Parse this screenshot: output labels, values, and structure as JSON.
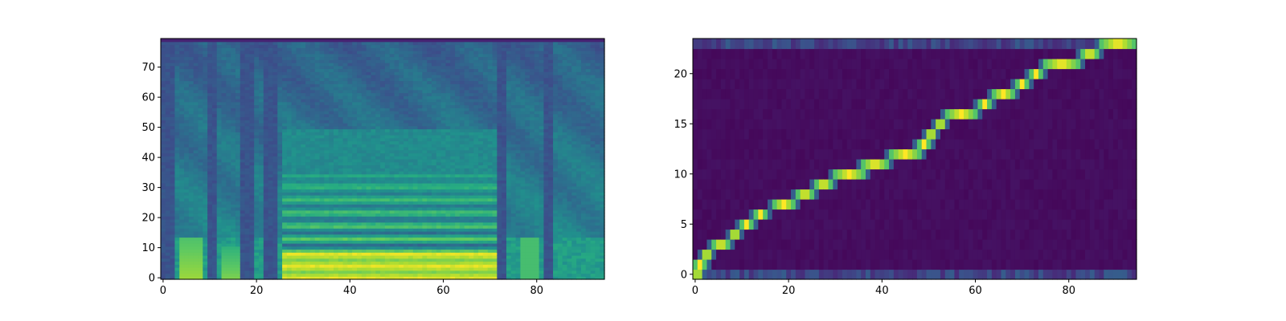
{
  "chart_data": [
    {
      "type": "heatmap",
      "kind": "mel-spectrogram",
      "colormap": "viridis",
      "title": "",
      "xlabel": "",
      "ylabel": "",
      "xlim": [
        -0.5,
        94.5
      ],
      "ylim": [
        -0.5,
        79.5
      ],
      "origin": "lower",
      "n_frames": 95,
      "n_mels": 80,
      "x_ticks": [
        0,
        20,
        40,
        60,
        80
      ],
      "y_ticks": [
        0,
        10,
        20,
        30,
        40,
        50,
        60,
        70
      ],
      "x_tick_labels": [
        "0",
        "20",
        "40",
        "60",
        "80"
      ],
      "y_tick_labels": [
        "0",
        "10",
        "20",
        "30",
        "40",
        "50",
        "60",
        "70"
      ],
      "silence_columns": [
        0,
        1,
        2,
        10,
        11,
        17,
        18,
        19,
        22,
        23,
        24,
        72,
        73,
        82,
        83
      ],
      "voiced_segments": [
        [
          26,
          71
        ]
      ],
      "grid": false
    },
    {
      "type": "heatmap",
      "kind": "attention-alignment",
      "colormap": "viridis",
      "title": "",
      "xlabel": "",
      "ylabel": "",
      "xlim": [
        -0.5,
        94.5
      ],
      "ylim": [
        -0.5,
        23.5
      ],
      "origin": "lower",
      "n_decoder_steps": 95,
      "n_encoder_steps": 24,
      "x_ticks": [
        0,
        20,
        40,
        60,
        80
      ],
      "y_ticks": [
        0,
        5,
        10,
        15,
        20
      ],
      "x_tick_labels": [
        "0",
        "20",
        "40",
        "60",
        "80"
      ],
      "y_tick_labels": [
        "0",
        "5",
        "10",
        "15",
        "20"
      ],
      "alignment_path": [
        {
          "encoder_step": 0,
          "decoder_start": 0,
          "decoder_end": 1
        },
        {
          "encoder_step": 1,
          "decoder_start": 0,
          "decoder_end": 2
        },
        {
          "encoder_step": 2,
          "decoder_start": 2,
          "decoder_end": 3
        },
        {
          "encoder_step": 3,
          "decoder_start": 4,
          "decoder_end": 7
        },
        {
          "encoder_step": 4,
          "decoder_start": 8,
          "decoder_end": 9
        },
        {
          "encoder_step": 5,
          "decoder_start": 10,
          "decoder_end": 12
        },
        {
          "encoder_step": 6,
          "decoder_start": 13,
          "decoder_end": 15
        },
        {
          "encoder_step": 7,
          "decoder_start": 17,
          "decoder_end": 21
        },
        {
          "encoder_step": 8,
          "decoder_start": 22,
          "decoder_end": 25
        },
        {
          "encoder_step": 9,
          "decoder_start": 26,
          "decoder_end": 29
        },
        {
          "encoder_step": 10,
          "decoder_start": 30,
          "decoder_end": 36
        },
        {
          "encoder_step": 11,
          "decoder_start": 36,
          "decoder_end": 41
        },
        {
          "encoder_step": 12,
          "decoder_start": 42,
          "decoder_end": 48
        },
        {
          "encoder_step": 13,
          "decoder_start": 48,
          "decoder_end": 50
        },
        {
          "encoder_step": 14,
          "decoder_start": 50,
          "decoder_end": 51
        },
        {
          "encoder_step": 15,
          "decoder_start": 52,
          "decoder_end": 53
        },
        {
          "encoder_step": 16,
          "decoder_start": 54,
          "decoder_end": 60
        },
        {
          "encoder_step": 17,
          "decoder_start": 61,
          "decoder_end": 63
        },
        {
          "encoder_step": 18,
          "decoder_start": 64,
          "decoder_end": 68
        },
        {
          "encoder_step": 19,
          "decoder_start": 69,
          "decoder_end": 71
        },
        {
          "encoder_step": 20,
          "decoder_start": 72,
          "decoder_end": 74
        },
        {
          "encoder_step": 21,
          "decoder_start": 75,
          "decoder_end": 82
        },
        {
          "encoder_step": 22,
          "decoder_start": 83,
          "decoder_end": 86
        },
        {
          "encoder_step": 23,
          "decoder_start": 87,
          "decoder_end": 94
        }
      ],
      "grid": false
    }
  ]
}
